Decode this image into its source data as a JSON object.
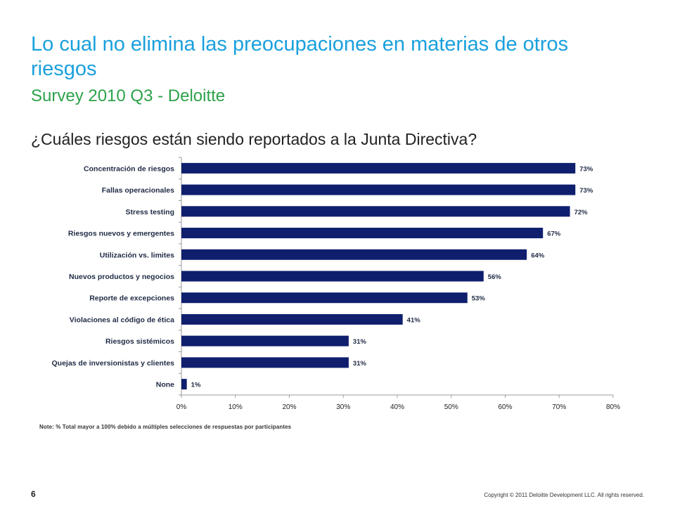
{
  "title": "Lo cual no elimina las preocupaciones en materias de otros riesgos",
  "subtitle": "Survey 2010 Q3 - Deloitte",
  "question": "¿Cuáles riesgos están siendo reportados a la Junta Directiva?",
  "note": "Note:  % Total  mayor a 100%  debido a múltiples selecciones de respuestas por participantes",
  "page_number": "6",
  "copyright": "Copyright © 2011 Deloitte Development LLC. All rights reserved.",
  "colors": {
    "bar": "#0f1f6e",
    "title": "#1aa0dd",
    "subtitle": "#2da24a"
  },
  "chart_data": {
    "type": "bar",
    "orientation": "horizontal",
    "categories": [
      "Concentración de riesgos",
      "Fallas operacionales",
      "Stress testing",
      "Riesgos nuevos y emergentes",
      "Utilización vs. limites",
      "Nuevos productos y negocios",
      "Reporte de excepciones",
      "Violaciones al código de ética",
      "Riesgos sistémicos",
      "Quejas de inversionistas y clientes",
      "None"
    ],
    "values": [
      0.73,
      0.73,
      0.72,
      0.67,
      0.64,
      0.56,
      0.53,
      0.41,
      0.31,
      0.31,
      0.01
    ],
    "data_labels": [
      "73%",
      "73%",
      "72%",
      "67%",
      "64%",
      "56%",
      "53%",
      "41%",
      "31%",
      "31%",
      "1%"
    ],
    "xlim": [
      0,
      0.8
    ],
    "x_ticks": [
      0,
      0.1,
      0.2,
      0.3,
      0.4,
      0.5,
      0.6,
      0.7,
      0.8
    ],
    "x_tick_labels": [
      "0%",
      "10%",
      "20%",
      "30%",
      "40%",
      "50%",
      "60%",
      "70%",
      "80%"
    ],
    "grid": false,
    "legend": "none"
  }
}
